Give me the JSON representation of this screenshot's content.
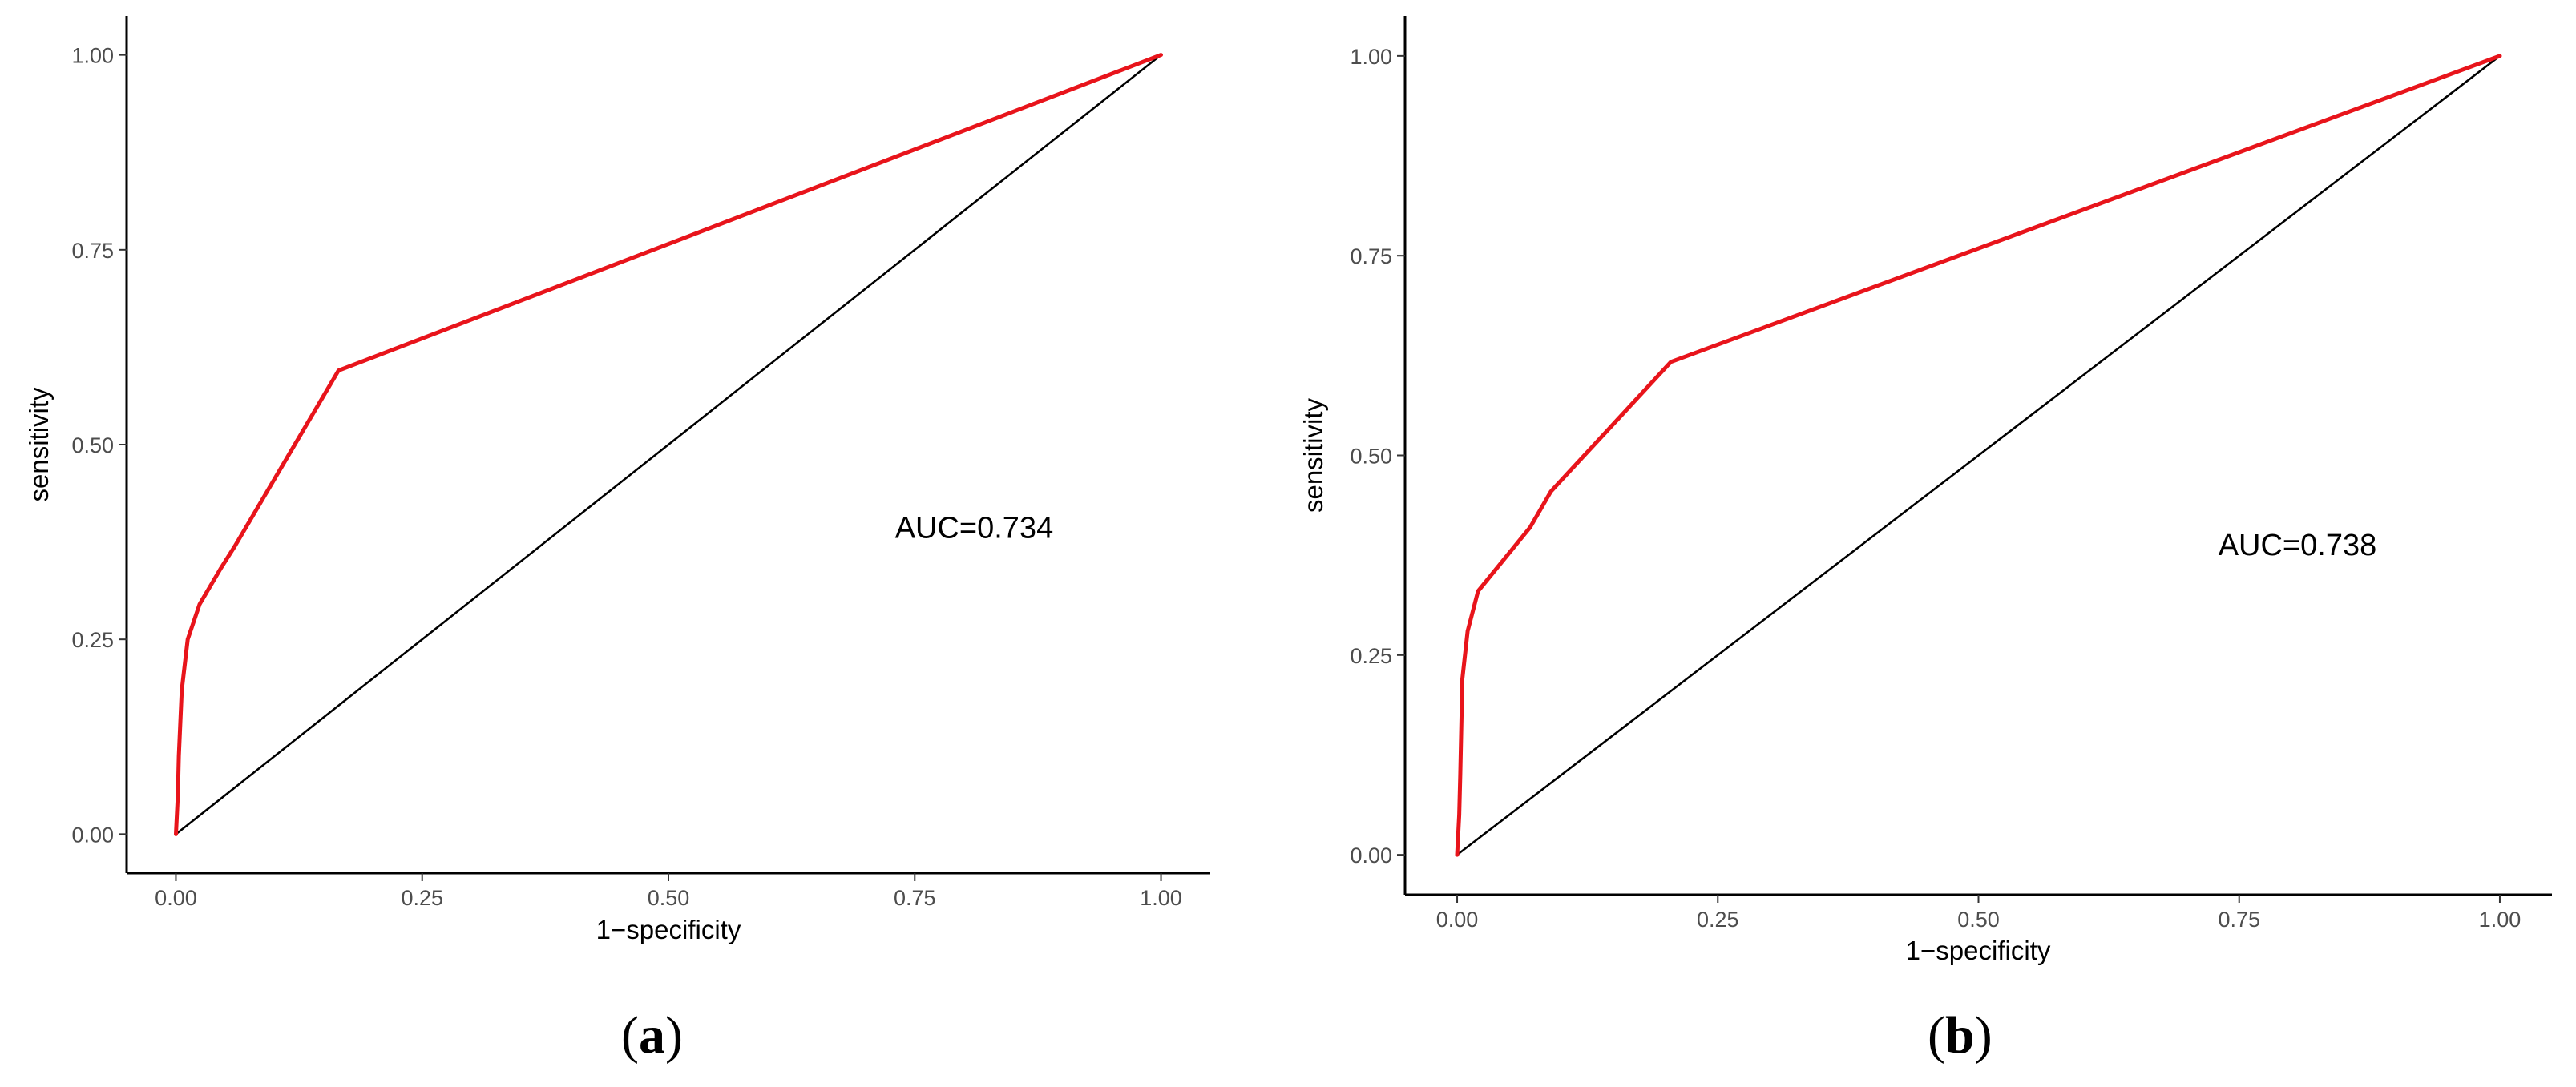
{
  "chart_data": [
    {
      "type": "line",
      "panel_label": "a",
      "xlabel": "1−specificity",
      "ylabel": "sensitivity",
      "xlim": [
        -0.05,
        1.05
      ],
      "ylim": [
        -0.05,
        1.05
      ],
      "x_ticks": [
        "0.00",
        "0.25",
        "0.50",
        "0.75",
        "1.00"
      ],
      "y_ticks": [
        "0.00",
        "0.25",
        "0.50",
        "0.75",
        "1.00"
      ],
      "annotation": {
        "text": "AUC=0.734",
        "x": 0.73,
        "y": 0.38
      },
      "grid": false,
      "series": [
        {
          "color": "#e8141b",
          "x": [
            0.0,
            0.002,
            0.003,
            0.004,
            0.006,
            0.012,
            0.024,
            0.045,
            0.06,
            0.165,
            1.0
          ],
          "y": [
            0.0,
            0.05,
            0.1,
            0.13,
            0.185,
            0.25,
            0.295,
            0.34,
            0.37,
            0.595,
            1.0
          ]
        },
        {
          "color": "#000000",
          "x": [
            0.0,
            1.0
          ],
          "y": [
            0.0,
            1.0
          ]
        }
      ]
    },
    {
      "type": "line",
      "panel_label": "b",
      "xlabel": "1−specificity",
      "ylabel": "sensitivity",
      "xlim": [
        -0.05,
        1.05
      ],
      "ylim": [
        -0.05,
        1.05
      ],
      "x_ticks": [
        "0.00",
        "0.25",
        "0.50",
        "0.75",
        "1.00"
      ],
      "y_ticks": [
        "0.00",
        "0.25",
        "0.50",
        "0.75",
        "1.00"
      ],
      "annotation": {
        "text": "AUC=0.738",
        "x": 0.73,
        "y": 0.375
      },
      "grid": false,
      "series": [
        {
          "color": "#e8141b",
          "x": [
            0.0,
            0.002,
            0.003,
            0.005,
            0.01,
            0.02,
            0.07,
            0.09,
            0.205,
            1.0
          ],
          "y": [
            0.0,
            0.05,
            0.1,
            0.22,
            0.28,
            0.33,
            0.41,
            0.455,
            0.617,
            1.0
          ]
        },
        {
          "color": "#000000",
          "x": [
            0.0,
            1.0
          ],
          "y": [
            0.0,
            1.0
          ]
        }
      ]
    }
  ]
}
